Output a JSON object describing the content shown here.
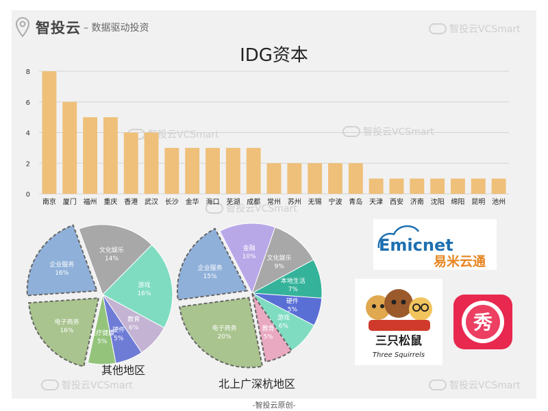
{
  "header": {
    "brand": "智投云",
    "tagline": "– 数据驱动投资",
    "watermark": "智投云VCSmart"
  },
  "chart_data": [
    {
      "type": "bar",
      "title": "IDG资本",
      "categories": [
        "南京",
        "厦门",
        "福州",
        "重庆",
        "香港",
        "武汉",
        "长沙",
        "金华",
        "海口",
        "芜湖",
        "成都",
        "常州",
        "苏州",
        "无锡",
        "宁波",
        "青岛",
        "天津",
        "西安",
        "济南",
        "沈阳",
        "绵阳",
        "昆明",
        "池州"
      ],
      "values": [
        8,
        6,
        5,
        5,
        4,
        4,
        3,
        3,
        3,
        3,
        3,
        2,
        2,
        2,
        2,
        2,
        1,
        1,
        1,
        1,
        1,
        1,
        1
      ],
      "ylim": [
        0,
        8
      ],
      "yticks": [
        0,
        2,
        4,
        6,
        8
      ],
      "color": "#efc07a",
      "grid": true
    },
    {
      "type": "pie",
      "title": "其他地区",
      "slices": [
        {
          "label": "文化娱乐",
          "pct": "14%",
          "value": 14,
          "color": "#a8a8a8"
        },
        {
          "label": "游戏",
          "pct": "16%",
          "value": 16,
          "color": "#7fdcc1"
        },
        {
          "label": "教育",
          "pct": "6%",
          "value": 6,
          "color": "#c4b3d3"
        },
        {
          "label": "硬件",
          "pct": "5%",
          "value": 5,
          "color": "#6f7cd6"
        },
        {
          "label": "医疗健康",
          "pct": "5%",
          "value": 5,
          "color": "#94c47c"
        },
        {
          "label": "电子商务",
          "pct": "16%",
          "value": 16,
          "color": "#a9c48e"
        },
        {
          "label": "企业服务",
          "pct": "16%",
          "value": 16,
          "color": "#8fb0d9"
        }
      ]
    },
    {
      "type": "pie",
      "title": "北上广深杭地区",
      "slices": [
        {
          "label": "金融",
          "pct": "10%",
          "value": 10,
          "color": "#b9a8e8"
        },
        {
          "label": "文化娱乐",
          "pct": "9%",
          "value": 9,
          "color": "#a8a8a8"
        },
        {
          "label": "本地生活",
          "pct": "7%",
          "value": 7,
          "color": "#34b39a"
        },
        {
          "label": "硬件",
          "pct": "5%",
          "value": 5,
          "color": "#5a6fd6"
        },
        {
          "label": "游戏",
          "pct": "6%",
          "value": 6,
          "color": "#7fdcc1"
        },
        {
          "label": "教育",
          "pct": "5%",
          "value": 5,
          "color": "#e9a9c1"
        },
        {
          "label": "电子商务",
          "pct": "20%",
          "value": 20,
          "color": "#a9c48e"
        },
        {
          "label": "企业服务",
          "pct": "15%",
          "value": 15,
          "color": "#8fb0d9"
        }
      ]
    }
  ],
  "logos": {
    "emicnet": "Emicnet",
    "emicnet_cn": "易米云通",
    "squirrels_cn": "三只松鼠",
    "squirrels_en": "Three Squirrels",
    "xiu": "秀"
  },
  "footer": "-智投云原创-"
}
